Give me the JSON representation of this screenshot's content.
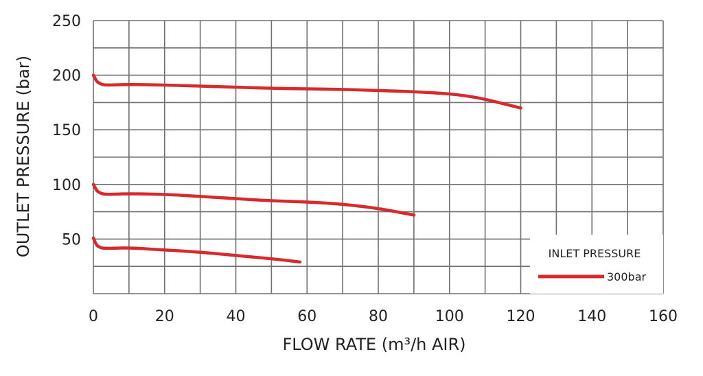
{
  "chart_data": {
    "type": "line",
    "title": "",
    "xlabel": "FLOW RATE (m³/h AIR)",
    "ylabel": "OUTLET PRESSURE (bar)",
    "xlim": [
      0,
      160
    ],
    "ylim": [
      0,
      250
    ],
    "x_ticks": [
      0,
      20,
      40,
      60,
      80,
      100,
      120,
      140,
      160
    ],
    "y_ticks": [
      50,
      100,
      150,
      200,
      250
    ],
    "grid": true,
    "legend_placement": "bottom-right",
    "legend_title": "INLET PRESSURE",
    "line_color": "#d62a2f",
    "series": [
      {
        "name": "300bar",
        "x": [
          0,
          0.5,
          1,
          2,
          3,
          5,
          10,
          20,
          30,
          40,
          50,
          60,
          70,
          80,
          90,
          100,
          105,
          110,
          115,
          120
        ],
        "y": [
          200,
          197,
          194,
          192,
          191,
          191,
          191.5,
          191,
          190,
          189,
          188,
          187.5,
          187,
          186,
          185,
          183,
          181,
          178,
          174,
          170
        ]
      },
      {
        "name": "",
        "x": [
          0,
          0.5,
          1,
          2,
          3,
          5,
          10,
          20,
          30,
          40,
          50,
          60,
          70,
          80,
          85,
          90
        ],
        "y": [
          100,
          97,
          94,
          92,
          91,
          91,
          91.5,
          91,
          89,
          87,
          85,
          84,
          82,
          78,
          75,
          72
        ]
      },
      {
        "name": "",
        "x": [
          0,
          0.5,
          1,
          2,
          3,
          5,
          10,
          20,
          30,
          40,
          50,
          58
        ],
        "y": [
          51,
          47,
          44,
          42,
          41.5,
          41.5,
          42,
          40,
          38,
          35,
          32,
          29
        ]
      }
    ]
  }
}
